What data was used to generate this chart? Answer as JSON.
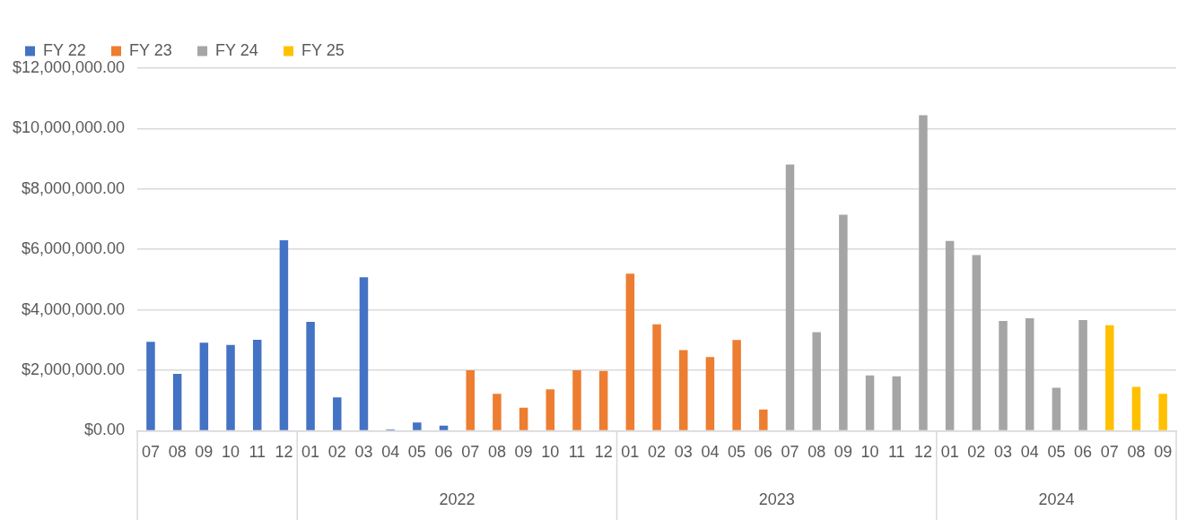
{
  "chart_data": {
    "type": "bar",
    "categories": [
      "07",
      "08",
      "09",
      "10",
      "11",
      "12",
      "01",
      "02",
      "03",
      "04",
      "05",
      "06",
      "07",
      "08",
      "09",
      "10",
      "11",
      "12",
      "01",
      "02",
      "03",
      "04",
      "05",
      "06",
      "07",
      "08",
      "09",
      "10",
      "11",
      "12",
      "01",
      "02",
      "03",
      "04",
      "05",
      "06",
      "07",
      "08",
      "09"
    ],
    "series": [
      {
        "name": "FY 22",
        "color": "#4472c4",
        "values": [
          2940000,
          1880000,
          2910000,
          2840000,
          3010000,
          6300000,
          3600000,
          1100000,
          5080000,
          40000,
          270000,
          170000,
          null,
          null,
          null,
          null,
          null,
          null,
          null,
          null,
          null,
          null,
          null,
          null,
          null,
          null,
          null,
          null,
          null,
          null,
          null,
          null,
          null,
          null,
          null,
          null,
          null,
          null,
          null
        ]
      },
      {
        "name": "FY 23",
        "color": "#ed7d31",
        "values": [
          null,
          null,
          null,
          null,
          null,
          null,
          null,
          null,
          null,
          null,
          null,
          null,
          2000000,
          1220000,
          760000,
          1370000,
          2000000,
          1980000,
          5200000,
          3520000,
          2670000,
          2440000,
          3000000,
          700000,
          null,
          null,
          null,
          null,
          null,
          null,
          null,
          null,
          null,
          null,
          null,
          null,
          null,
          null,
          null
        ]
      },
      {
        "name": "FY 24",
        "color": "#a5a5a5",
        "values": [
          null,
          null,
          null,
          null,
          null,
          null,
          null,
          null,
          null,
          null,
          null,
          null,
          null,
          null,
          null,
          null,
          null,
          null,
          null,
          null,
          null,
          null,
          null,
          null,
          8810000,
          3260000,
          7150000,
          1830000,
          1800000,
          10440000,
          6280000,
          5810000,
          3630000,
          3720000,
          1420000,
          3660000,
          null,
          null,
          null
        ]
      },
      {
        "name": "FY 25",
        "color": "#ffc000",
        "values": [
          null,
          null,
          null,
          null,
          null,
          null,
          null,
          null,
          null,
          null,
          null,
          null,
          null,
          null,
          null,
          null,
          null,
          null,
          null,
          null,
          null,
          null,
          null,
          null,
          null,
          null,
          null,
          null,
          null,
          null,
          null,
          null,
          null,
          null,
          null,
          null,
          3490000,
          1450000,
          1220000
        ]
      }
    ],
    "ylim": [
      0,
      12000000
    ],
    "yticks": [
      {
        "value": 0,
        "label": "$0.00"
      },
      {
        "value": 2000000,
        "label": "$2,000,000.00"
      },
      {
        "value": 4000000,
        "label": "$4,000,000.00"
      },
      {
        "value": 6000000,
        "label": "$6,000,000.00"
      },
      {
        "value": 8000000,
        "label": "$8,000,000.00"
      },
      {
        "value": 10000000,
        "label": "$10,000,000.00"
      },
      {
        "value": 12000000,
        "label": "$12,000,000.00"
      }
    ],
    "grid": "y",
    "legend": "top",
    "annotations": [
      "2022",
      "2023",
      "2024"
    ]
  }
}
